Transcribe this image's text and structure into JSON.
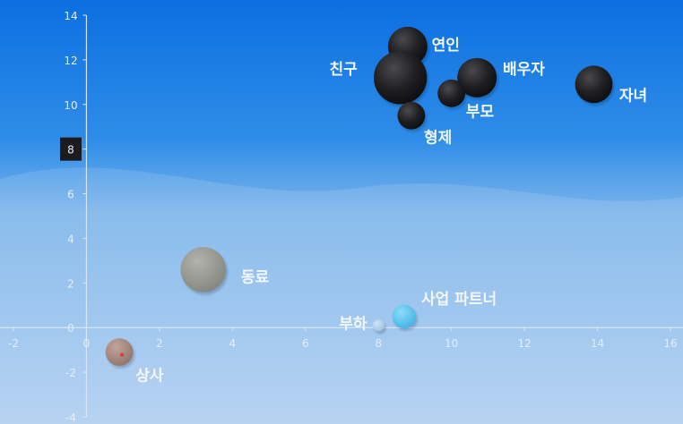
{
  "chart_data": {
    "type": "scatter",
    "xlim": [
      -2,
      16
    ],
    "ylim": [
      -4,
      14
    ],
    "x_ticks": [
      "-2",
      "0",
      "2",
      "4",
      "6",
      "8",
      "10",
      "12",
      "14",
      "16"
    ],
    "y_ticks": [
      "-4",
      "-2",
      "0",
      "2",
      "4",
      "6",
      "8",
      "10",
      "12",
      "14"
    ],
    "highlighted_y_tick": "8",
    "grid": false,
    "points": [
      {
        "label": "연인",
        "x": 8.8,
        "y": 12.6,
        "size": 1.0,
        "color": "#1c1c1e"
      },
      {
        "label": "친구",
        "x": 8.6,
        "y": 11.2,
        "size": 1.35,
        "color": "#1c1c1e"
      },
      {
        "label": "배우자",
        "x": 10.7,
        "y": 11.2,
        "size": 1.0,
        "color": "#1c1c1e"
      },
      {
        "label": "자녀",
        "x": 13.9,
        "y": 10.9,
        "size": 0.95,
        "color": "#1c1c1e"
      },
      {
        "label": "부모",
        "x": 10.0,
        "y": 10.5,
        "size": 0.7,
        "color": "#2a2a2c"
      },
      {
        "label": "형제",
        "x": 8.9,
        "y": 9.5,
        "size": 0.7,
        "color": "#2e2e30"
      },
      {
        "label": "동료",
        "x": 3.2,
        "y": 2.6,
        "size": 1.15,
        "color": "#9a9a95"
      },
      {
        "label": "사업 파트너",
        "x": 8.7,
        "y": 0.5,
        "size": 0.6,
        "color": "#5ec6f2"
      },
      {
        "label": "부하",
        "x": 8.0,
        "y": 0.1,
        "size": 0.3,
        "color": "#a9cbe6"
      },
      {
        "label": "상사",
        "x": 0.9,
        "y": -1.1,
        "size": 0.7,
        "color": "#a48a82"
      }
    ]
  }
}
